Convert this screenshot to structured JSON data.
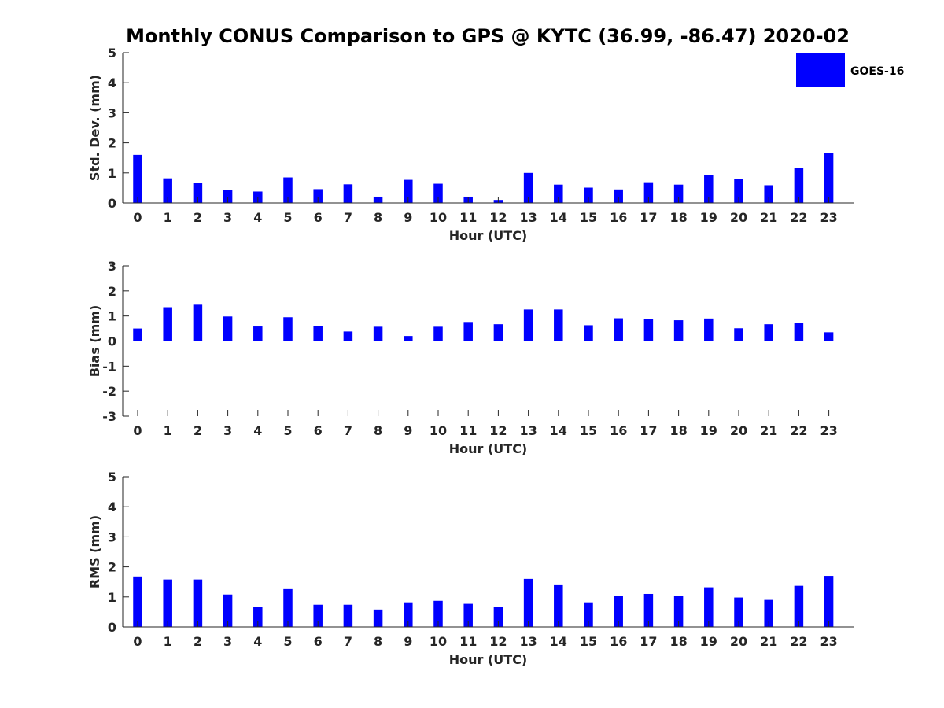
{
  "title": "Monthly CONUS Comparison to GPS @ KYTC (36.99, -86.47) 2020-02",
  "bar_color": "#0000ff",
  "legend": {
    "label": "GOES-16",
    "placement": "top-right"
  },
  "chart_data": [
    {
      "type": "bar",
      "xlabel": "Hour (UTC)",
      "ylabel": "Std. Dev. (mm)",
      "ylim": [
        0,
        5
      ],
      "yticks": [
        "0",
        "1",
        "2",
        "3",
        "4",
        "5"
      ],
      "categories": [
        "0",
        "1",
        "2",
        "3",
        "4",
        "5",
        "6",
        "7",
        "8",
        "9",
        "10",
        "11",
        "12",
        "13",
        "14",
        "15",
        "16",
        "17",
        "18",
        "19",
        "20",
        "21",
        "22",
        "23"
      ],
      "series": [
        {
          "name": "GOES-16",
          "values": [
            1.6,
            0.82,
            0.67,
            0.44,
            0.38,
            0.85,
            0.46,
            0.62,
            0.21,
            0.77,
            0.64,
            0.21,
            0.1,
            1.0,
            0.61,
            0.51,
            0.45,
            0.69,
            0.61,
            0.94,
            0.8,
            0.59,
            1.17,
            1.67
          ]
        }
      ]
    },
    {
      "type": "bar",
      "xlabel": "Hour (UTC)",
      "ylabel": "Bias (mm)",
      "ylim": [
        -3,
        3
      ],
      "yticks": [
        "-3",
        "-2",
        "-1",
        "0",
        "1",
        "2",
        "3"
      ],
      "categories": [
        "0",
        "1",
        "2",
        "3",
        "4",
        "5",
        "6",
        "7",
        "8",
        "9",
        "10",
        "11",
        "12",
        "13",
        "14",
        "15",
        "16",
        "17",
        "18",
        "19",
        "20",
        "21",
        "22",
        "23"
      ],
      "series": [
        {
          "name": "GOES-16",
          "values": [
            0.5,
            1.35,
            1.45,
            0.98,
            0.58,
            0.95,
            0.59,
            0.38,
            0.57,
            0.2,
            0.57,
            0.76,
            0.67,
            1.26,
            1.26,
            0.63,
            0.91,
            0.88,
            0.83,
            0.9,
            0.51,
            0.67,
            0.71,
            0.35
          ]
        }
      ]
    },
    {
      "type": "bar",
      "xlabel": "Hour (UTC)",
      "ylabel": "RMS (mm)",
      "ylim": [
        0,
        5
      ],
      "yticks": [
        "0",
        "1",
        "2",
        "3",
        "4",
        "5"
      ],
      "categories": [
        "0",
        "1",
        "2",
        "3",
        "4",
        "5",
        "6",
        "7",
        "8",
        "9",
        "10",
        "11",
        "12",
        "13",
        "14",
        "15",
        "16",
        "17",
        "18",
        "19",
        "20",
        "21",
        "22",
        "23"
      ],
      "series": [
        {
          "name": "GOES-16",
          "values": [
            1.68,
            1.58,
            1.58,
            1.08,
            0.68,
            1.26,
            0.74,
            0.74,
            0.58,
            0.82,
            0.87,
            0.77,
            0.66,
            1.6,
            1.39,
            0.82,
            1.03,
            1.1,
            1.03,
            1.32,
            0.98,
            0.9,
            1.37,
            1.7
          ]
        }
      ]
    }
  ]
}
